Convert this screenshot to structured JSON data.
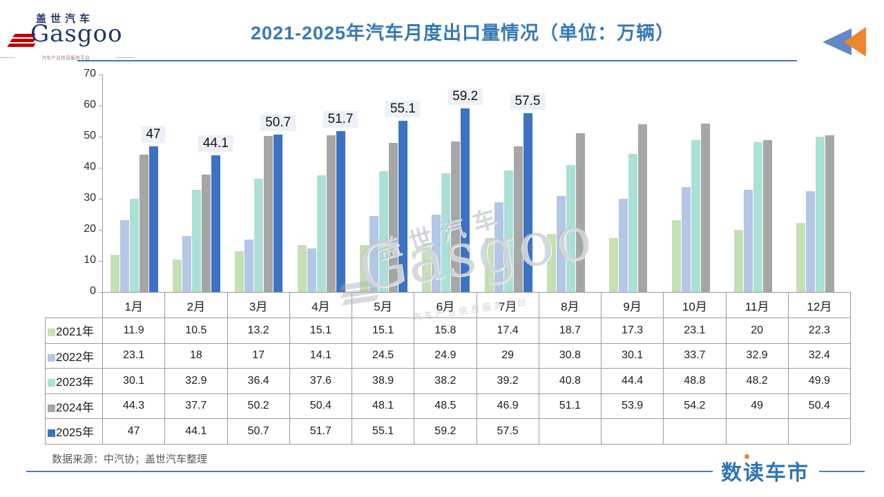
{
  "header": {
    "logo_cn": "盖世汽车",
    "logo_en": "Gasgoo",
    "logo_tagline": "汽车产业信息服务平台",
    "back_icon": "double-left-arrow-icon"
  },
  "chart_data": {
    "type": "bar",
    "title": "2021-2025年汽车月度出口量情况（单位：万辆）",
    "categories": [
      "1月",
      "2月",
      "3月",
      "4月",
      "5月",
      "6月",
      "7月",
      "8月",
      "9月",
      "10月",
      "11月",
      "12月"
    ],
    "series": [
      {
        "name": "2021年",
        "color": "#c5e0b4",
        "show_labels": false,
        "values": [
          11.9,
          10.5,
          13.2,
          15.1,
          15.1,
          15.8,
          17.4,
          18.7,
          17.3,
          23.1,
          20,
          22.3
        ]
      },
      {
        "name": "2022年",
        "color": "#b4c7e7",
        "show_labels": false,
        "values": [
          23.1,
          18,
          17,
          14.1,
          24.5,
          24.9,
          29,
          30.8,
          30.1,
          33.7,
          32.9,
          32.4
        ]
      },
      {
        "name": "2023年",
        "color": "#abe0d6",
        "show_labels": false,
        "values": [
          30.1,
          32.9,
          36.4,
          37.6,
          38.9,
          38.2,
          39.2,
          40.8,
          44.4,
          48.8,
          48.2,
          49.9
        ]
      },
      {
        "name": "2024年",
        "color": "#a6a6a6",
        "show_labels": false,
        "values": [
          44.3,
          37.7,
          50.2,
          50.4,
          48.1,
          48.5,
          46.9,
          51.1,
          53.9,
          54.2,
          49,
          50.4
        ]
      },
      {
        "name": "2025年",
        "color": "#3b73c2",
        "show_labels": true,
        "values": [
          47,
          44.1,
          50.7,
          51.7,
          55.1,
          59.2,
          57.5,
          null,
          null,
          null,
          null,
          null
        ]
      }
    ],
    "ylim": [
      0,
      70
    ],
    "yticks": [
      0,
      10,
      20,
      30,
      40,
      50,
      60,
      70
    ],
    "grid": false,
    "legend_position": "table-left-column",
    "bar_label_values": [
      "47",
      "44.1",
      "50.7",
      "51.7",
      "55.1",
      "59.2",
      "57.5"
    ]
  },
  "watermark": {
    "cn": "盖世汽车",
    "en": "Gasgoo",
    "tagline": "汽车产业信息服务平台"
  },
  "footer": {
    "source": "数据来源：中汽协；盖世汽车整理",
    "brand": "数读车市"
  }
}
